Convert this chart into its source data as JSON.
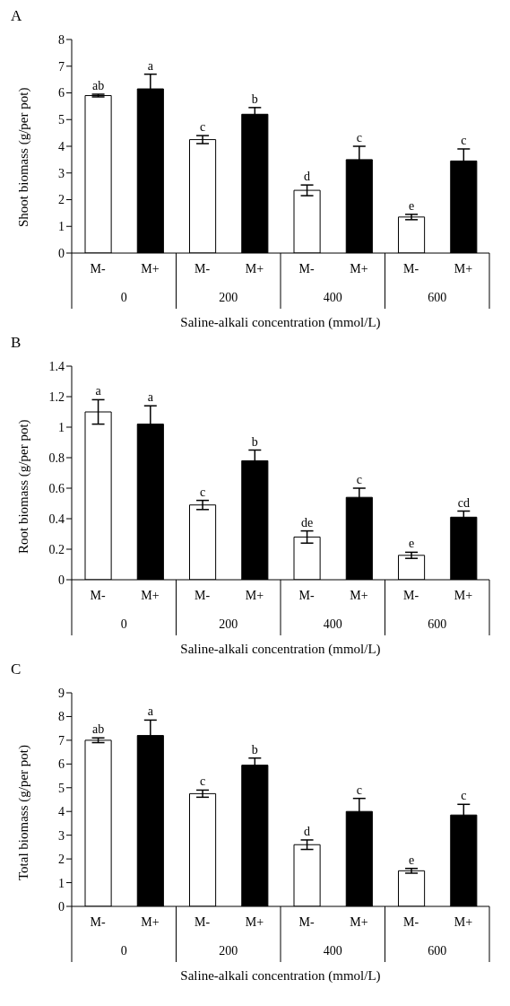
{
  "chart_data": [
    {
      "type": "bar",
      "title": "A",
      "ylabel": "Shoot biomass (g/per pot)",
      "xlabel": "Saline-alkali concentration (mmol/L)",
      "categories": [
        "0",
        "200",
        "400",
        "600"
      ],
      "series": [
        {
          "name": "M-",
          "color": "#ffffff",
          "values": [
            5.9,
            4.25,
            2.35,
            1.35
          ],
          "errors": [
            0.05,
            0.15,
            0.2,
            0.1
          ]
        },
        {
          "name": "M+",
          "color": "#000000",
          "values": [
            6.15,
            5.2,
            3.5,
            3.45
          ],
          "errors": [
            0.55,
            0.25,
            0.5,
            0.45
          ]
        }
      ],
      "ylim": [
        0,
        8
      ],
      "yticks": [
        0,
        1,
        2,
        3,
        4,
        5,
        6,
        7,
        8
      ],
      "grid": false,
      "legend": false,
      "annotations": [
        "ab",
        "a",
        "c",
        "b",
        "d",
        "c",
        "e",
        "c"
      ]
    },
    {
      "type": "bar",
      "title": "B",
      "ylabel": "Root biomass (g/per pot)",
      "xlabel": "Saline-alkali concentration (mmol/L)",
      "categories": [
        "0",
        "200",
        "400",
        "600"
      ],
      "series": [
        {
          "name": "M-",
          "color": "#ffffff",
          "values": [
            1.1,
            0.49,
            0.28,
            0.16
          ],
          "errors": [
            0.08,
            0.03,
            0.04,
            0.02
          ]
        },
        {
          "name": "M+",
          "color": "#000000",
          "values": [
            1.02,
            0.78,
            0.54,
            0.41
          ],
          "errors": [
            0.12,
            0.07,
            0.06,
            0.04
          ]
        }
      ],
      "ylim": [
        0,
        1.4
      ],
      "yticks": [
        0,
        0.2,
        0.4,
        0.6,
        0.8,
        1,
        1.2,
        1.4
      ],
      "grid": false,
      "legend": false,
      "annotations": [
        "a",
        "a",
        "c",
        "b",
        "de",
        "c",
        "e",
        "cd"
      ]
    },
    {
      "type": "bar",
      "title": "C",
      "ylabel": "Total biomass (g/per pot)",
      "xlabel": "Saline-alkali concentration (mmol/L)",
      "categories": [
        "0",
        "200",
        "400",
        "600"
      ],
      "series": [
        {
          "name": "M-",
          "color": "#ffffff",
          "values": [
            7.0,
            4.75,
            2.6,
            1.5
          ],
          "errors": [
            0.1,
            0.15,
            0.2,
            0.1
          ]
        },
        {
          "name": "M+",
          "color": "#000000",
          "values": [
            7.2,
            5.95,
            4.0,
            3.85
          ],
          "errors": [
            0.65,
            0.3,
            0.55,
            0.45
          ]
        }
      ],
      "ylim": [
        0,
        9
      ],
      "yticks": [
        0,
        1,
        2,
        3,
        4,
        5,
        6,
        7,
        8,
        9
      ],
      "grid": false,
      "legend": false,
      "annotations": [
        "ab",
        "a",
        "c",
        "b",
        "d",
        "c",
        "e",
        "c"
      ]
    }
  ]
}
